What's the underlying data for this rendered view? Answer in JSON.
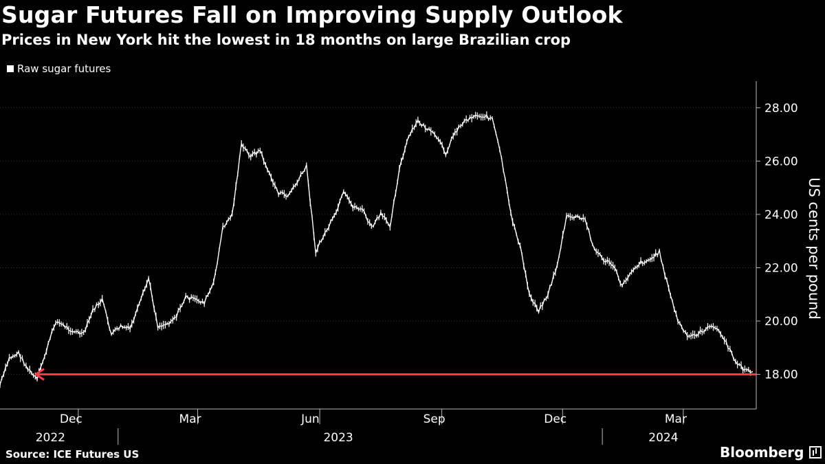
{
  "header": {
    "title": "Sugar Futures Fall on Improving Supply Outlook",
    "subtitle": "Prices in New York hit the lowest in 18 months on large Brazilian crop"
  },
  "footer": {
    "source": "Source: ICE Futures US",
    "brand": "Bloomberg"
  },
  "colors": {
    "background": "#000000",
    "series": "#ffffff",
    "annotation_arrow": "#ff3b4e",
    "grid": "#3a3a3a"
  },
  "chart_data": {
    "type": "line",
    "title": "Sugar Futures Fall on Improving Supply Outlook",
    "subtitle": "Prices in New York hit the lowest in 18 months on large Brazilian crop",
    "ylabel": "US cents per pound",
    "ylim": [
      16.7,
      29.0
    ],
    "yticks": [
      18,
      20,
      22,
      24,
      26,
      28
    ],
    "ytick_labels": [
      "18.00",
      "20.00",
      "22.00",
      "24.00",
      "26.00",
      "28.00"
    ],
    "xlim": [
      "2022-10-03",
      "2024-04-25"
    ],
    "month_ticks": [
      {
        "label": "Dec",
        "date": "2022-12-01"
      },
      {
        "label": "Mar",
        "date": "2023-03-01"
      },
      {
        "label": "Jun",
        "date": "2023-06-01"
      },
      {
        "label": "Sep",
        "date": "2023-09-01"
      },
      {
        "label": "Dec",
        "date": "2023-12-01"
      },
      {
        "label": "Mar",
        "date": "2024-03-01"
      }
    ],
    "year_labels": [
      {
        "label": "2022",
        "date": "2022-11-10"
      },
      {
        "label": "2023",
        "date": "2023-06-15"
      },
      {
        "label": "2024",
        "date": "2024-02-15"
      }
    ],
    "year_separators": [
      "2022-12-31",
      "2023-12-31"
    ],
    "grid": "horizontal",
    "legend": "top-left",
    "series": [
      {
        "name": "Raw sugar futures",
        "x": [
          "2022-10-03",
          "2022-10-10",
          "2022-10-17",
          "2022-10-24",
          "2022-10-31",
          "2022-11-07",
          "2022-11-14",
          "2022-11-21",
          "2022-11-28",
          "2022-12-05",
          "2022-12-12",
          "2022-12-19",
          "2022-12-26",
          "2023-01-02",
          "2023-01-09",
          "2023-01-16",
          "2023-01-23",
          "2023-01-30",
          "2023-02-06",
          "2023-02-13",
          "2023-02-20",
          "2023-02-27",
          "2023-03-06",
          "2023-03-13",
          "2023-03-20",
          "2023-03-27",
          "2023-04-03",
          "2023-04-10",
          "2023-04-17",
          "2023-04-24",
          "2023-05-01",
          "2023-05-08",
          "2023-05-15",
          "2023-05-22",
          "2023-05-29",
          "2023-06-05",
          "2023-06-12",
          "2023-06-19",
          "2023-06-26",
          "2023-07-03",
          "2023-07-10",
          "2023-07-17",
          "2023-07-24",
          "2023-07-31",
          "2023-08-07",
          "2023-08-14",
          "2023-08-21",
          "2023-08-28",
          "2023-09-04",
          "2023-09-11",
          "2023-09-18",
          "2023-09-25",
          "2023-10-02",
          "2023-10-09",
          "2023-10-16",
          "2023-10-23",
          "2023-10-30",
          "2023-11-06",
          "2023-11-13",
          "2023-11-20",
          "2023-11-27",
          "2023-12-04",
          "2023-12-11",
          "2023-12-18",
          "2023-12-25",
          "2024-01-01",
          "2024-01-08",
          "2024-01-15",
          "2024-01-22",
          "2024-01-29",
          "2024-02-05",
          "2024-02-12",
          "2024-02-19",
          "2024-02-26",
          "2024-03-04",
          "2024-03-11",
          "2024-03-18",
          "2024-03-25",
          "2024-04-01",
          "2024-04-08",
          "2024-04-15",
          "2024-04-22"
        ],
        "values": [
          17.6,
          18.6,
          18.8,
          18.2,
          17.8,
          18.9,
          20.0,
          19.8,
          19.6,
          19.5,
          20.4,
          20.8,
          19.5,
          19.8,
          19.7,
          20.6,
          21.6,
          19.8,
          19.9,
          20.2,
          20.9,
          20.8,
          20.7,
          21.4,
          23.5,
          24.0,
          26.6,
          26.2,
          26.4,
          25.5,
          24.8,
          24.7,
          25.2,
          25.8,
          22.6,
          23.3,
          23.9,
          24.8,
          24.3,
          24.2,
          23.5,
          24.0,
          23.6,
          25.7,
          26.9,
          27.5,
          27.2,
          26.9,
          26.3,
          27.1,
          27.5,
          27.7,
          27.7,
          27.6,
          26.1,
          24.0,
          22.8,
          21.0,
          20.4,
          21.0,
          22.1,
          23.9,
          23.9,
          23.8,
          22.7,
          22.3,
          22.1,
          21.3,
          21.9,
          22.2,
          22.3,
          22.6,
          21.2,
          20.0,
          19.4,
          19.5,
          19.7,
          19.8,
          19.3,
          18.6,
          18.2,
          18.1
        ]
      }
    ],
    "annotations": [
      {
        "type": "arrow",
        "y": 18.0,
        "x_from": "2024-04-25",
        "x_to": "2022-10-30",
        "color": "#ff3b4e"
      }
    ]
  }
}
